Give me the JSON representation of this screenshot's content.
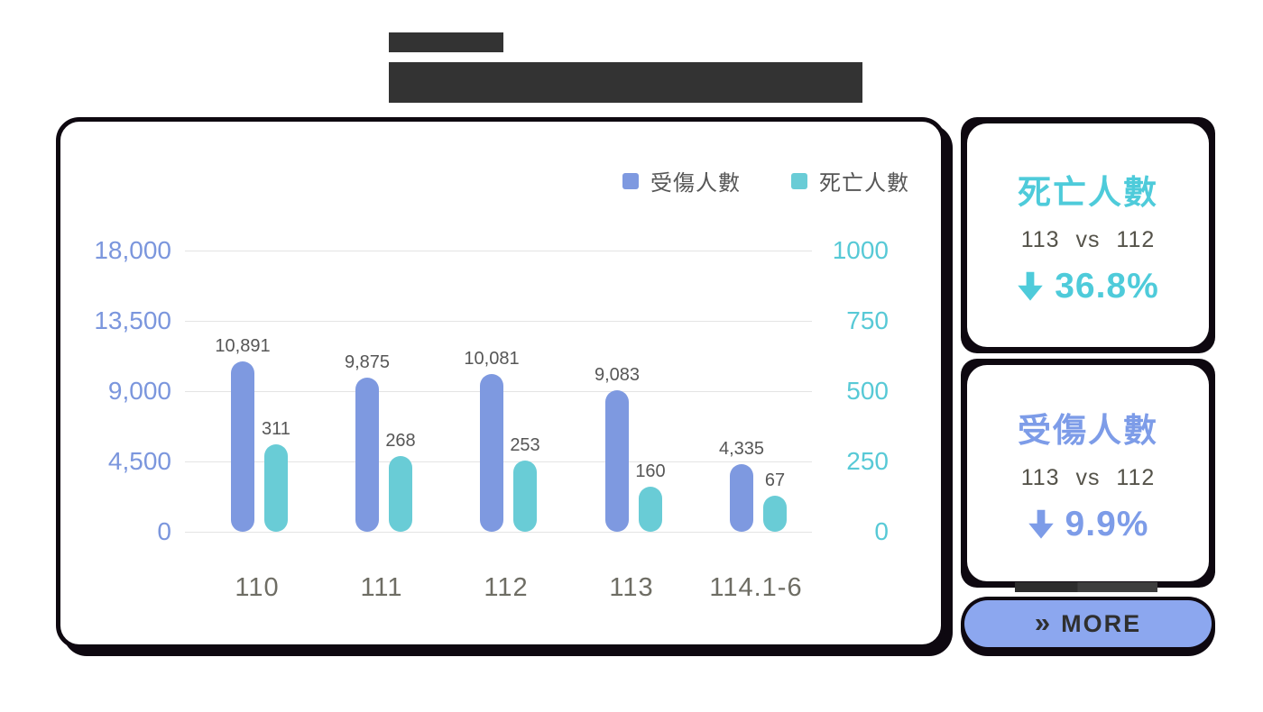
{
  "header": {
    "tab_block_text": "",
    "title_block_text": ""
  },
  "chart_data": {
    "type": "bar",
    "categories": [
      "110",
      "111",
      "112",
      "113",
      "114.1-6"
    ],
    "series": [
      {
        "name": "受傷人數",
        "axis": "left",
        "color": "#7e99e0",
        "values": [
          10891,
          9875,
          10081,
          9083,
          4335
        ],
        "labels": [
          "10,891",
          "9,875",
          "10,081",
          "9,083",
          "4,335"
        ]
      },
      {
        "name": "死亡人數",
        "axis": "right",
        "color": "#69ccd6",
        "values": [
          311,
          268,
          253,
          160,
          67
        ],
        "labels": [
          "311",
          "268",
          "253",
          "160",
          "67"
        ]
      }
    ],
    "left_axis": {
      "max": 18000,
      "ticks": [
        "18,000",
        "13,500",
        "9,000",
        "4,500",
        "0"
      ],
      "color": "#7b96dd"
    },
    "right_axis": {
      "max": 1000,
      "ticks": [
        "1000",
        "750",
        "500",
        "250",
        "0"
      ],
      "color": "#57c9d6"
    },
    "grid": true,
    "legend_position": "top-right",
    "title": ""
  },
  "cards": [
    {
      "title": "死亡人數",
      "subtitle": "113 vs 112",
      "direction": "down",
      "change": "36.8%",
      "accent": "#4ecbda"
    },
    {
      "title": "受傷人數",
      "subtitle": "113 vs 112",
      "direction": "down",
      "change": "9.9%",
      "accent": "#7d9ce8"
    }
  ],
  "more": {
    "chevron": "»",
    "label": "MORE"
  },
  "colors": {
    "header_block": "#333333",
    "panel_frame": "#0e0810",
    "gridline": "#e4e4e4",
    "bar_value_label": "#565656",
    "x_axis_label": "#6e6d64",
    "more_button_bg": "#8ca7ef",
    "more_button_text": "#2f2f2f"
  }
}
